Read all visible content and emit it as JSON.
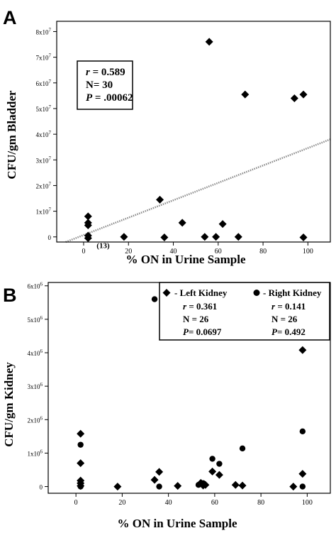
{
  "chart_data": [
    {
      "panel": "A",
      "type": "scatter",
      "xlabel": "% ON in Urine Sample",
      "ylabel": "CFU/gm Bladder",
      "xlim": [
        -12,
        110
      ],
      "ylim": [
        -2000000,
        84000000
      ],
      "x_ticks": [
        0,
        20,
        40,
        60,
        80,
        100
      ],
      "x_tick_labels": [
        "0",
        "20",
        "40",
        "60",
        "80",
        "100"
      ],
      "y_ticks": [
        0,
        10000000,
        20000000,
        30000000,
        40000000,
        50000000,
        60000000,
        70000000,
        80000000
      ],
      "y_tick_labels": [
        {
          "base": "0",
          "exp": ""
        },
        {
          "base": "1x10",
          "exp": "7"
        },
        {
          "base": "2x10",
          "exp": "7"
        },
        {
          "base": "3x10",
          "exp": "7"
        },
        {
          "base": "4x10",
          "exp": "7"
        },
        {
          "base": "5x10",
          "exp": "7"
        },
        {
          "base": "6x10",
          "exp": "7"
        },
        {
          "base": "7x10",
          "exp": "7"
        },
        {
          "base": "8x10",
          "exp": "7"
        }
      ],
      "stats": {
        "r_label": "r",
        "r_value": "= 0.589",
        "n": "N= 30",
        "p_label": "P",
        "p_value": "= .00062"
      },
      "series": [
        {
          "marker": "diamond",
          "points": [
            [
              2,
              8000000
            ],
            [
              2,
              5500000
            ],
            [
              2,
              4500000
            ],
            [
              2,
              500000
            ],
            [
              2,
              -500000
            ],
            [
              18,
              0
            ],
            [
              34,
              14500000
            ],
            [
              36,
              -200000
            ],
            [
              44,
              5500000
            ],
            [
              54,
              0
            ],
            [
              56,
              76000000
            ],
            [
              59,
              0
            ],
            [
              62,
              5000000
            ],
            [
              69,
              0
            ],
            [
              72,
              55500000
            ],
            [
              94,
              54000000
            ],
            [
              98,
              55500000
            ],
            [
              98,
              -200000
            ]
          ]
        }
      ],
      "annotation": {
        "text": "(13)",
        "x": 2,
        "y": -500000
      },
      "regression": {
        "x": [
          -8,
          110
        ],
        "y": [
          -2000000,
          38000000
        ],
        "color": "#8a8a8a"
      }
    },
    {
      "panel": "B",
      "type": "scatter",
      "xlabel": "% ON in Urine Sample",
      "ylabel": "CFU/gm Kidney",
      "xlim": [
        -12,
        110
      ],
      "ylim": [
        -200000,
        6100000
      ],
      "x_ticks": [
        0,
        20,
        40,
        60,
        80,
        100
      ],
      "x_tick_labels": [
        "0",
        "20",
        "40",
        "60",
        "80",
        "100"
      ],
      "y_ticks": [
        0,
        1000000,
        2000000,
        3000000,
        4000000,
        5000000,
        6000000
      ],
      "y_tick_labels": [
        {
          "base": "0",
          "exp": ""
        },
        {
          "base": "1x10",
          "exp": "6"
        },
        {
          "base": "2x10",
          "exp": "6"
        },
        {
          "base": "3x10",
          "exp": "6"
        },
        {
          "base": "4x10",
          "exp": "6"
        },
        {
          "base": "5x10",
          "exp": "6"
        },
        {
          "base": "6x10",
          "exp": "6"
        }
      ],
      "legend": [
        {
          "marker": "diamond",
          "label": "- Left Kidney",
          "r_label": "r",
          "r_value": "= 0.361",
          "n": "N = 26",
          "p_label": "P",
          "p_value": "= 0.0697"
        },
        {
          "marker": "circle",
          "label": "- Right Kidney",
          "r_label": "r",
          "r_value": "= 0.141",
          "n": "N = 26",
          "p_label": "P",
          "p_value": "= 0.492"
        }
      ],
      "series": [
        {
          "name": "Left Kidney",
          "marker": "diamond",
          "points": [
            [
              2,
              1580000
            ],
            [
              2,
              700000
            ],
            [
              2,
              180000
            ],
            [
              2,
              100000
            ],
            [
              2,
              20000
            ],
            [
              18,
              0
            ],
            [
              34,
              200000
            ],
            [
              36,
              440000
            ],
            [
              44,
              20000
            ],
            [
              54,
              110000
            ],
            [
              55,
              30000
            ],
            [
              56,
              50000
            ],
            [
              59,
              450000
            ],
            [
              62,
              350000
            ],
            [
              69,
              50000
            ],
            [
              72,
              30000
            ],
            [
              94,
              0
            ],
            [
              98,
              4080000
            ],
            [
              98,
              380000
            ]
          ]
        },
        {
          "name": "Right Kidney",
          "marker": "circle",
          "points": [
            [
              2,
              1250000
            ],
            [
              2,
              0
            ],
            [
              34,
              5600000
            ],
            [
              36,
              0
            ],
            [
              53,
              50000
            ],
            [
              55,
              100000
            ],
            [
              59,
              830000
            ],
            [
              62,
              680000
            ],
            [
              72,
              1140000
            ],
            [
              98,
              1650000
            ],
            [
              98,
              0
            ]
          ]
        }
      ]
    }
  ]
}
